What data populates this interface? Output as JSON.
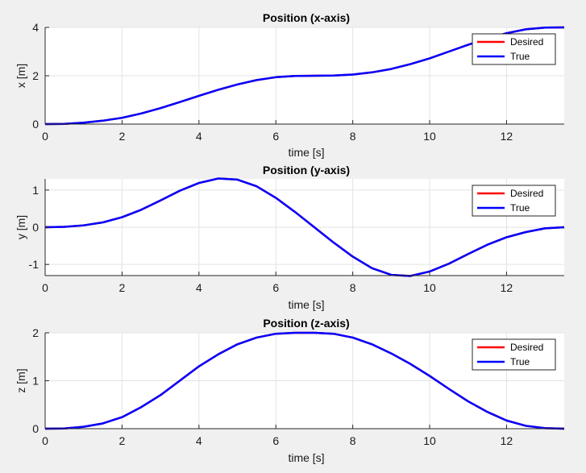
{
  "colors": {
    "figure_bg": "#f0f0f0",
    "axes_bg": "#ffffff",
    "grid": "#e3e3e3",
    "axis": "#262626",
    "desired": "#ff0000",
    "true": "#0000ff",
    "legend_border": "#262626"
  },
  "chart_data": [
    {
      "type": "line",
      "title": "Position (x-axis)",
      "xlabel": "time [s]",
      "ylabel": "x [m]",
      "xlim": [
        0,
        13.5
      ],
      "ylim": [
        0,
        4
      ],
      "xticks": [
        0,
        2,
        4,
        6,
        8,
        10,
        12
      ],
      "xtick_labels": [
        "0",
        "2",
        "4",
        "6",
        "8",
        "10",
        "12"
      ],
      "yticks": [
        0,
        2,
        4
      ],
      "ytick_labels": [
        "0",
        "2",
        "4"
      ],
      "grid": true,
      "legend_position": "top-right",
      "x": [
        0,
        0.5,
        1,
        1.5,
        2,
        2.5,
        3,
        3.5,
        4,
        4.5,
        5,
        5.5,
        6,
        6.5,
        7,
        7.5,
        8,
        8.5,
        9,
        9.5,
        10,
        10.5,
        11,
        11.5,
        12,
        12.5,
        13,
        13.5
      ],
      "series": [
        {
          "name": "Desired",
          "values": [
            0,
            0.01,
            0.06,
            0.14,
            0.26,
            0.44,
            0.66,
            0.91,
            1.17,
            1.42,
            1.64,
            1.82,
            1.94,
            1.99,
            2.0,
            2.01,
            2.05,
            2.14,
            2.28,
            2.48,
            2.72,
            3.0,
            3.28,
            3.54,
            3.76,
            3.92,
            3.99,
            4.0
          ]
        },
        {
          "name": "True",
          "values": [
            0,
            0.01,
            0.06,
            0.14,
            0.26,
            0.44,
            0.66,
            0.91,
            1.17,
            1.42,
            1.64,
            1.82,
            1.94,
            1.99,
            2.0,
            2.01,
            2.05,
            2.14,
            2.28,
            2.48,
            2.72,
            3.0,
            3.28,
            3.54,
            3.76,
            3.92,
            3.99,
            4.0
          ]
        }
      ]
    },
    {
      "type": "line",
      "title": "Position (y-axis)",
      "xlabel": "time [s]",
      "ylabel": "y [m]",
      "xlim": [
        0,
        13.5
      ],
      "ylim": [
        -1.3,
        1.3
      ],
      "xticks": [
        0,
        2,
        4,
        6,
        8,
        10,
        12
      ],
      "xtick_labels": [
        "0",
        "2",
        "4",
        "6",
        "8",
        "10",
        "12"
      ],
      "yticks": [
        -1,
        0,
        1
      ],
      "ytick_labels": [
        "-1",
        "0",
        "1"
      ],
      "grid": true,
      "legend_position": "top-right",
      "x": [
        0,
        0.5,
        1,
        1.5,
        2,
        2.5,
        3,
        3.5,
        4,
        4.5,
        5,
        5.5,
        6,
        6.5,
        7,
        7.5,
        8,
        8.5,
        9,
        9.5,
        10,
        10.5,
        11,
        11.5,
        12,
        12.5,
        13,
        13.5
      ],
      "series": [
        {
          "name": "Desired",
          "values": [
            0,
            0.01,
            0.05,
            0.13,
            0.27,
            0.47,
            0.72,
            0.98,
            1.19,
            1.31,
            1.28,
            1.1,
            0.79,
            0.41,
            0.0,
            -0.41,
            -0.79,
            -1.1,
            -1.28,
            -1.31,
            -1.19,
            -0.98,
            -0.72,
            -0.47,
            -0.27,
            -0.13,
            -0.03,
            0.0
          ]
        },
        {
          "name": "True",
          "values": [
            0,
            0.01,
            0.05,
            0.13,
            0.27,
            0.47,
            0.72,
            0.98,
            1.19,
            1.31,
            1.28,
            1.1,
            0.79,
            0.41,
            0.0,
            -0.41,
            -0.79,
            -1.1,
            -1.28,
            -1.31,
            -1.19,
            -0.98,
            -0.72,
            -0.47,
            -0.27,
            -0.13,
            -0.03,
            0.0
          ]
        }
      ]
    },
    {
      "type": "line",
      "title": "Position (z-axis)",
      "xlabel": "time [s]",
      "ylabel": "z [m]",
      "xlim": [
        0,
        13.5
      ],
      "ylim": [
        0,
        2
      ],
      "xticks": [
        0,
        2,
        4,
        6,
        8,
        10,
        12
      ],
      "xtick_labels": [
        "0",
        "2",
        "4",
        "6",
        "8",
        "10",
        "12"
      ],
      "yticks": [
        0,
        1,
        2
      ],
      "ytick_labels": [
        "0",
        "1",
        "2"
      ],
      "grid": true,
      "legend_position": "top-right",
      "x": [
        0,
        0.5,
        1,
        1.5,
        2,
        2.5,
        3,
        3.5,
        4,
        4.5,
        5,
        5.5,
        6,
        6.5,
        7,
        7.5,
        8,
        8.5,
        9,
        9.5,
        10,
        10.5,
        11,
        11.5,
        12,
        12.5,
        13,
        13.5
      ],
      "series": [
        {
          "name": "Desired",
          "values": [
            0,
            0.005,
            0.04,
            0.11,
            0.24,
            0.45,
            0.7,
            1.0,
            1.3,
            1.55,
            1.76,
            1.9,
            1.98,
            2.0,
            2.0,
            1.98,
            1.9,
            1.76,
            1.57,
            1.35,
            1.1,
            0.83,
            0.57,
            0.35,
            0.17,
            0.06,
            0.01,
            0.0
          ]
        },
        {
          "name": "True",
          "values": [
            0,
            0.005,
            0.04,
            0.11,
            0.24,
            0.45,
            0.7,
            1.0,
            1.3,
            1.55,
            1.76,
            1.9,
            1.98,
            2.0,
            2.0,
            1.98,
            1.9,
            1.76,
            1.57,
            1.35,
            1.1,
            0.83,
            0.57,
            0.35,
            0.17,
            0.06,
            0.01,
            0.0
          ]
        }
      ]
    }
  ]
}
